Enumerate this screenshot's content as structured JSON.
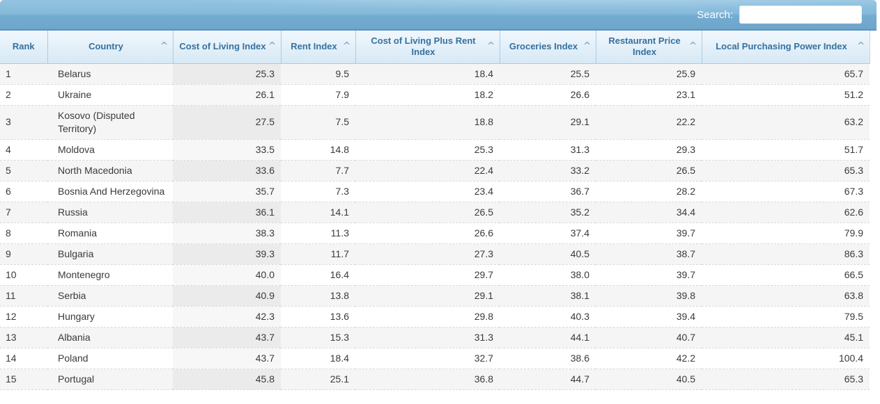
{
  "topbar": {
    "search_label": "Search:",
    "search_value": ""
  },
  "icons": {
    "sort_caret": "^"
  },
  "table": {
    "columns": [
      {
        "label": "Rank",
        "sortable": false
      },
      {
        "label": "Country",
        "sortable": true
      },
      {
        "label": "Cost of Living Index",
        "sortable": true,
        "sorted": true
      },
      {
        "label": "Rent Index",
        "sortable": true
      },
      {
        "label": "Cost of Living Plus Rent Index",
        "sortable": true
      },
      {
        "label": "Groceries Index",
        "sortable": true
      },
      {
        "label": "Restaurant Price Index",
        "sortable": true
      },
      {
        "label": "Local Purchasing Power Index",
        "sortable": true
      }
    ],
    "rows": [
      {
        "rank": "1",
        "country": "Belarus",
        "cost_of_living": "25.3",
        "rent": "9.5",
        "col_plus_rent": "18.4",
        "groceries": "25.5",
        "restaurant": "25.9",
        "purchasing_power": "65.7"
      },
      {
        "rank": "2",
        "country": "Ukraine",
        "cost_of_living": "26.1",
        "rent": "7.9",
        "col_plus_rent": "18.2",
        "groceries": "26.6",
        "restaurant": "23.1",
        "purchasing_power": "51.2"
      },
      {
        "rank": "3",
        "country": "Kosovo (Disputed Territory)",
        "cost_of_living": "27.5",
        "rent": "7.5",
        "col_plus_rent": "18.8",
        "groceries": "29.1",
        "restaurant": "22.2",
        "purchasing_power": "63.2"
      },
      {
        "rank": "4",
        "country": "Moldova",
        "cost_of_living": "33.5",
        "rent": "14.8",
        "col_plus_rent": "25.3",
        "groceries": "31.3",
        "restaurant": "29.3",
        "purchasing_power": "51.7"
      },
      {
        "rank": "5",
        "country": "North Macedonia",
        "cost_of_living": "33.6",
        "rent": "7.7",
        "col_plus_rent": "22.4",
        "groceries": "33.2",
        "restaurant": "26.5",
        "purchasing_power": "65.3"
      },
      {
        "rank": "6",
        "country": "Bosnia And Herzegovina",
        "cost_of_living": "35.7",
        "rent": "7.3",
        "col_plus_rent": "23.4",
        "groceries": "36.7",
        "restaurant": "28.2",
        "purchasing_power": "67.3"
      },
      {
        "rank": "7",
        "country": "Russia",
        "cost_of_living": "36.1",
        "rent": "14.1",
        "col_plus_rent": "26.5",
        "groceries": "35.2",
        "restaurant": "34.4",
        "purchasing_power": "62.6"
      },
      {
        "rank": "8",
        "country": "Romania",
        "cost_of_living": "38.3",
        "rent": "11.3",
        "col_plus_rent": "26.6",
        "groceries": "37.4",
        "restaurant": "39.7",
        "purchasing_power": "79.9"
      },
      {
        "rank": "9",
        "country": "Bulgaria",
        "cost_of_living": "39.3",
        "rent": "11.7",
        "col_plus_rent": "27.3",
        "groceries": "40.5",
        "restaurant": "38.7",
        "purchasing_power": "86.3"
      },
      {
        "rank": "10",
        "country": "Montenegro",
        "cost_of_living": "40.0",
        "rent": "16.4",
        "col_plus_rent": "29.7",
        "groceries": "38.0",
        "restaurant": "39.7",
        "purchasing_power": "66.5"
      },
      {
        "rank": "11",
        "country": "Serbia",
        "cost_of_living": "40.9",
        "rent": "13.8",
        "col_plus_rent": "29.1",
        "groceries": "38.1",
        "restaurant": "39.8",
        "purchasing_power": "63.8"
      },
      {
        "rank": "12",
        "country": "Hungary",
        "cost_of_living": "42.3",
        "rent": "13.6",
        "col_plus_rent": "29.8",
        "groceries": "40.3",
        "restaurant": "39.4",
        "purchasing_power": "79.5"
      },
      {
        "rank": "13",
        "country": "Albania",
        "cost_of_living": "43.7",
        "rent": "15.3",
        "col_plus_rent": "31.3",
        "groceries": "44.1",
        "restaurant": "40.7",
        "purchasing_power": "45.1"
      },
      {
        "rank": "14",
        "country": "Poland",
        "cost_of_living": "43.7",
        "rent": "18.4",
        "col_plus_rent": "32.7",
        "groceries": "38.6",
        "restaurant": "42.2",
        "purchasing_power": "100.4"
      },
      {
        "rank": "15",
        "country": "Portugal",
        "cost_of_living": "45.8",
        "rent": "25.1",
        "col_plus_rent": "36.8",
        "groceries": "44.7",
        "restaurant": "40.5",
        "purchasing_power": "65.3"
      }
    ]
  },
  "colors": {
    "toolbar_top": "#93c4e1",
    "toolbar_bottom": "#6ea5cb",
    "header_text": "#35719f",
    "header_border": "#abcbe3",
    "odd_row": "#f5f5f5",
    "sorted_odd": "#ebebeb",
    "sorted_even": "#f7f7f7"
  }
}
